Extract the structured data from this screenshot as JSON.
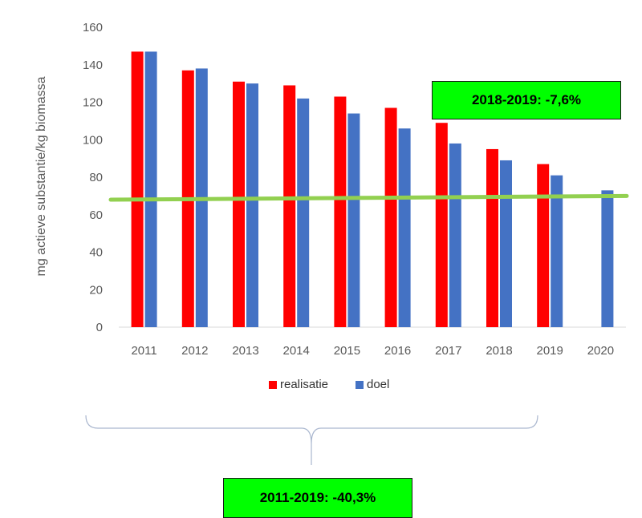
{
  "chart_data": {
    "type": "bar",
    "ylabel": "mg actieve substantie/kg biomassa",
    "categories": [
      "2011",
      "2012",
      "2013",
      "2014",
      "2015",
      "2016",
      "2017",
      "2018",
      "2019",
      "2020"
    ],
    "series": [
      {
        "name": "realisatie",
        "color": "#ff0000",
        "values": [
          147,
          137,
          131,
          129,
          123,
          117,
          109,
          95,
          87,
          null
        ]
      },
      {
        "name": "doel",
        "color": "#4472c4",
        "values": [
          147,
          138,
          130,
          122,
          114,
          106,
          98,
          89,
          81,
          73
        ]
      }
    ],
    "ylim": [
      0,
      160
    ],
    "yticks": [
      0,
      20,
      40,
      60,
      80,
      100,
      120,
      140,
      160
    ],
    "grid": false,
    "legend": "bottom",
    "reference_line": {
      "color": "#92d050",
      "start": 68,
      "end": 70
    }
  },
  "annotations": {
    "top_callout": "2018-2019: -7,6%",
    "bottom_callout": "2011-2019: -40,3%"
  }
}
